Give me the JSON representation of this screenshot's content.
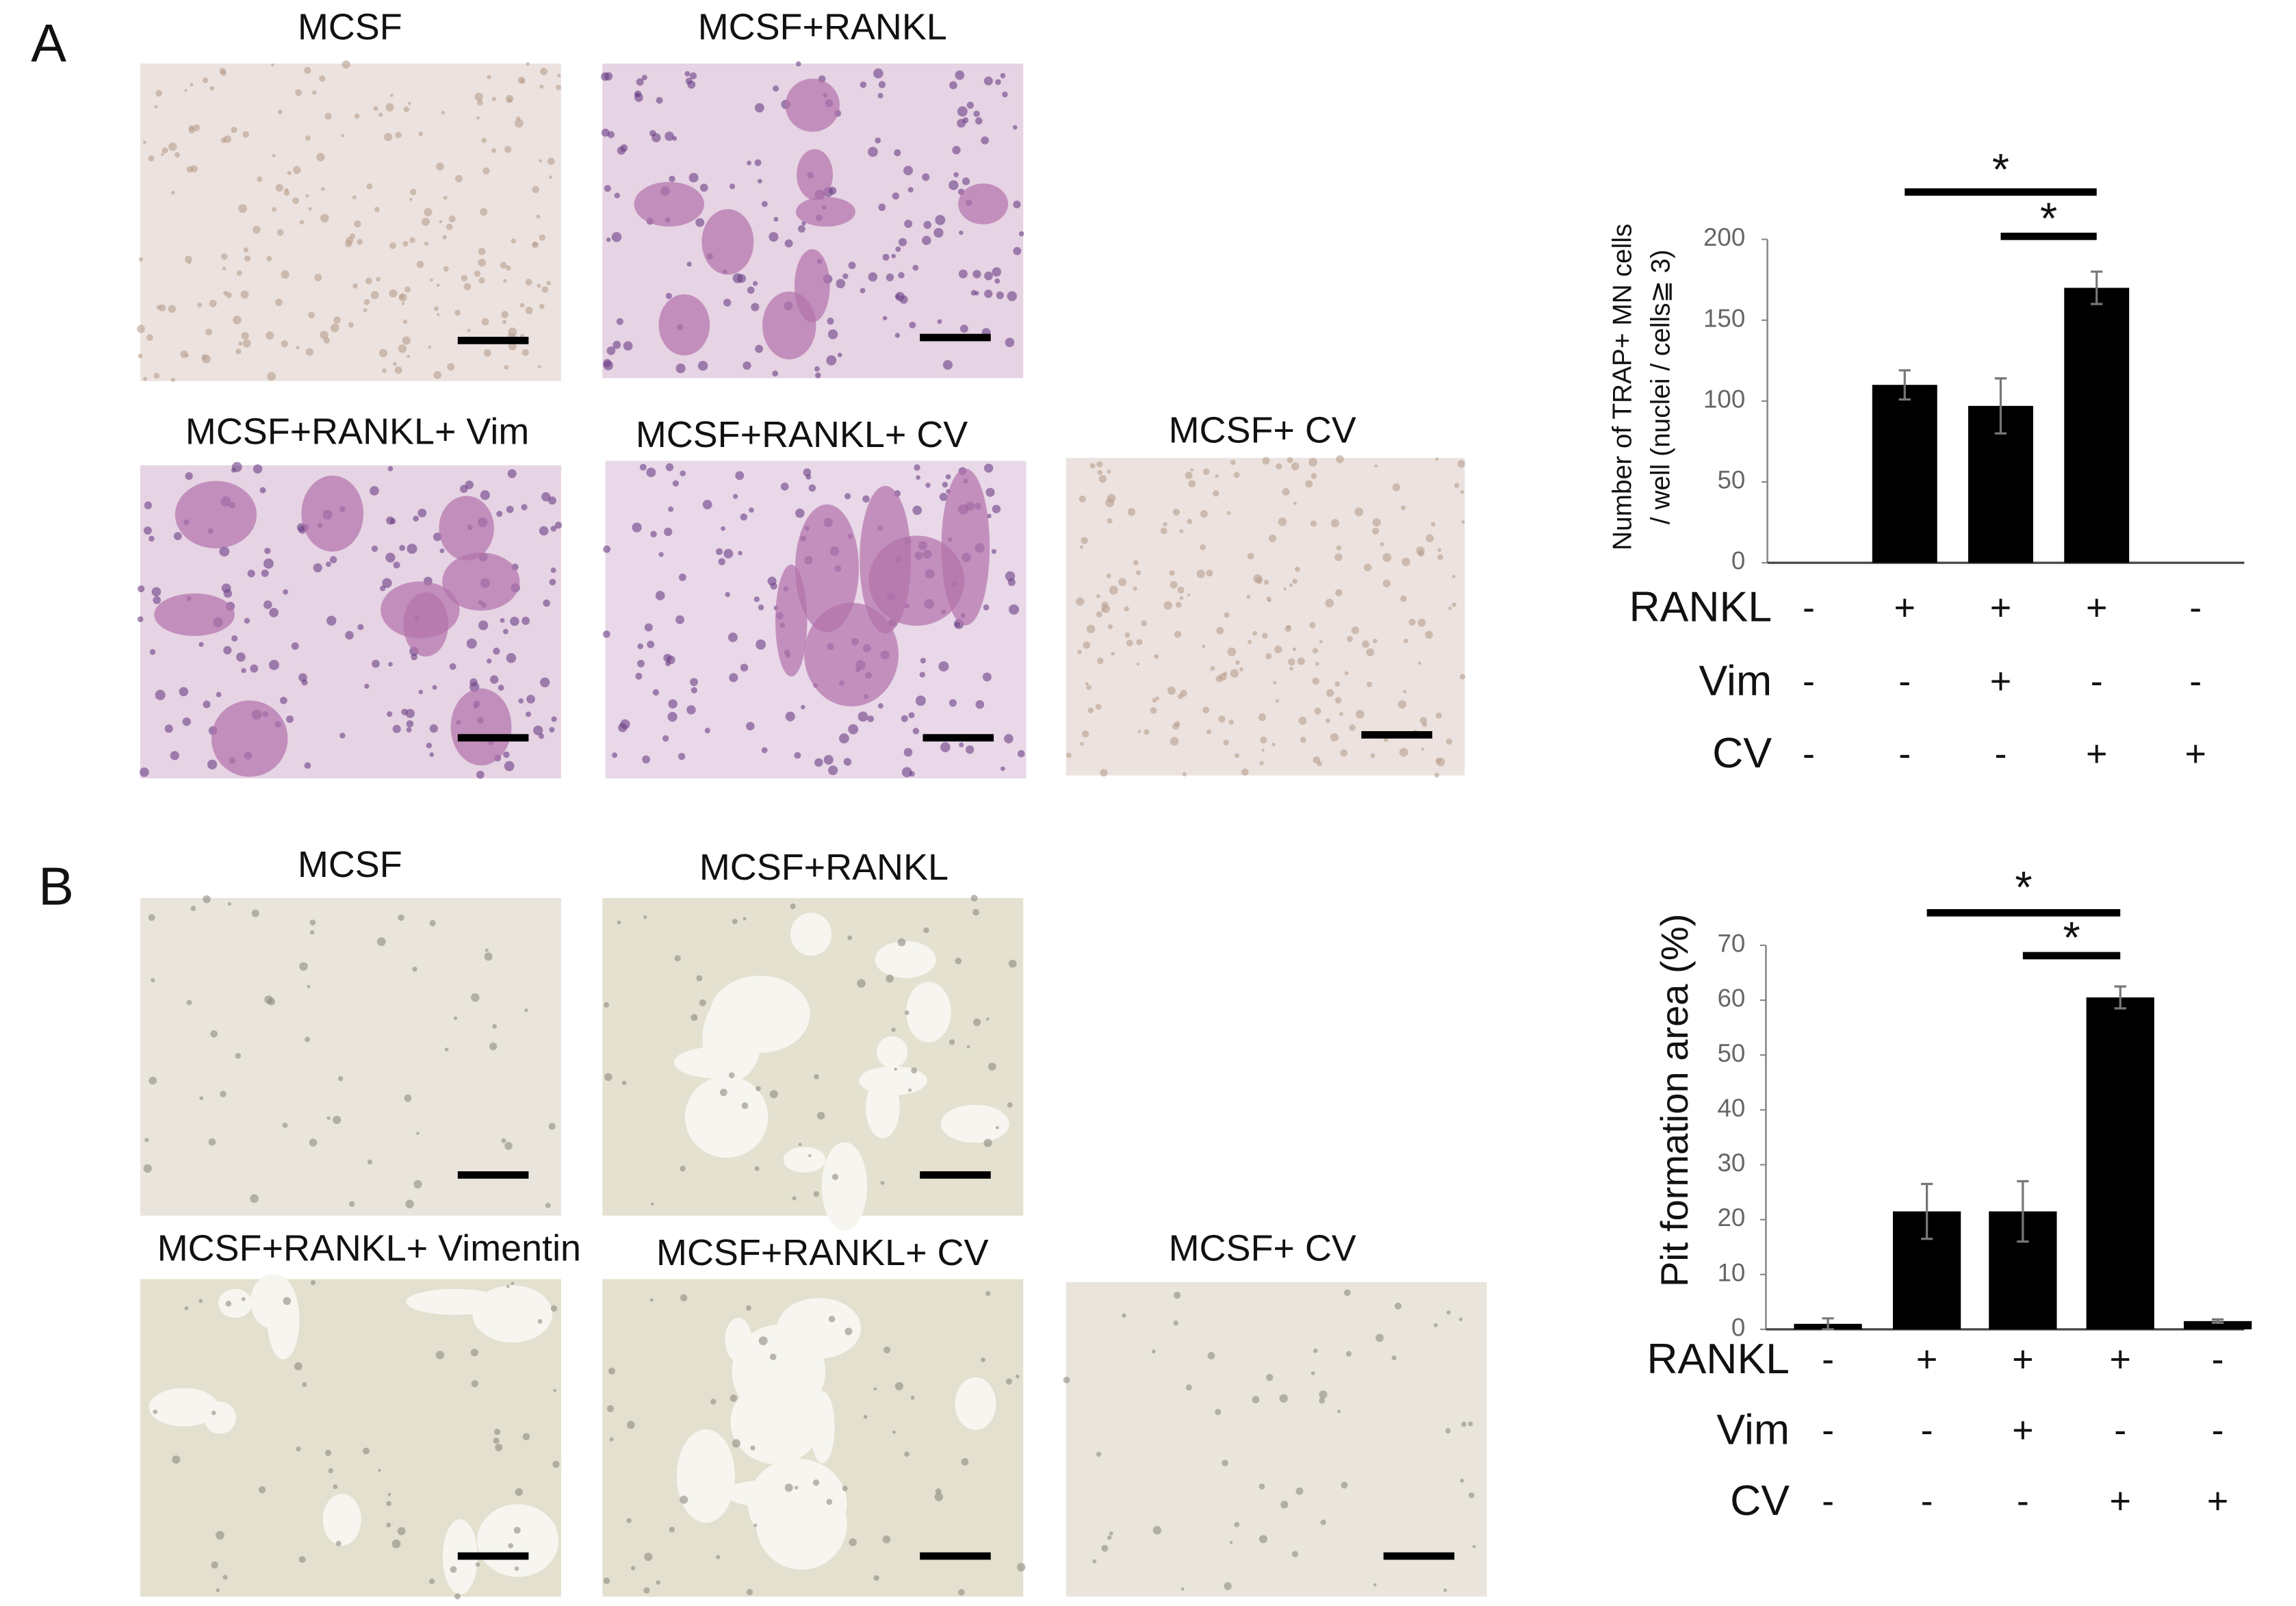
{
  "panels": [
    {
      "label": "A",
      "images": [
        {
          "caption": "MCSF"
        },
        {
          "caption": "MCSF+RANKL"
        },
        {
          "caption": "MCSF+RANKL+ Vim"
        },
        {
          "caption": "MCSF+RANKL+ CV"
        },
        {
          "caption": "MCSF+ CV"
        }
      ]
    },
    {
      "label": "B",
      "images": [
        {
          "caption": "MCSF"
        },
        {
          "caption": "MCSF+RANKL"
        },
        {
          "caption": "MCSF+RANKL+ Vimentin"
        },
        {
          "caption": "MCSF+RANKL+ CV"
        },
        {
          "caption": "MCSF+ CV"
        }
      ]
    }
  ],
  "chart_data": [
    {
      "type": "bar",
      "ylabel": [
        "Number of TRAP+ MN cells",
        "/ well (nuclei / cells≧ 3)"
      ],
      "values": [
        0,
        110,
        97,
        170,
        0
      ],
      "errors": [
        null,
        9,
        17,
        10,
        null
      ],
      "color": "#000000",
      "ylim": [
        0,
        200
      ],
      "yticks": [
        0,
        50,
        100,
        150,
        200
      ],
      "conditions": [
        {
          "name": "RANKL",
          "values": [
            "-",
            "+",
            "+",
            "+",
            "-"
          ]
        },
        {
          "name": "Vim",
          "values": [
            "-",
            "-",
            "+",
            "-",
            "-"
          ]
        },
        {
          "name": "CV",
          "values": [
            "-",
            "-",
            "-",
            "+",
            "+"
          ]
        }
      ],
      "significance": [
        {
          "label": "*",
          "between": [
            1,
            3
          ]
        },
        {
          "label": "*",
          "between": [
            2,
            3
          ]
        }
      ]
    },
    {
      "type": "bar",
      "ylabel": [
        "Pit formation area (%)"
      ],
      "values": [
        1,
        21.5,
        21.5,
        60.5,
        1.5
      ],
      "errors": [
        1,
        5,
        5.5,
        2,
        0.3
      ],
      "color": "#000000",
      "ylim": [
        0,
        70
      ],
      "yticks": [
        0,
        10,
        20,
        30,
        40,
        50,
        60,
        70
      ],
      "conditions": [
        {
          "name": "RANKL",
          "values": [
            "-",
            "+",
            "+",
            "+",
            "-"
          ]
        },
        {
          "name": "Vim",
          "values": [
            "-",
            "-",
            "+",
            "-",
            "-"
          ]
        },
        {
          "name": "CV",
          "values": [
            "-",
            "-",
            "-",
            "+",
            "+"
          ]
        }
      ],
      "significance": [
        {
          "label": "*",
          "between": [
            1,
            3
          ]
        },
        {
          "label": "*",
          "between": [
            2,
            3
          ]
        }
      ]
    }
  ]
}
